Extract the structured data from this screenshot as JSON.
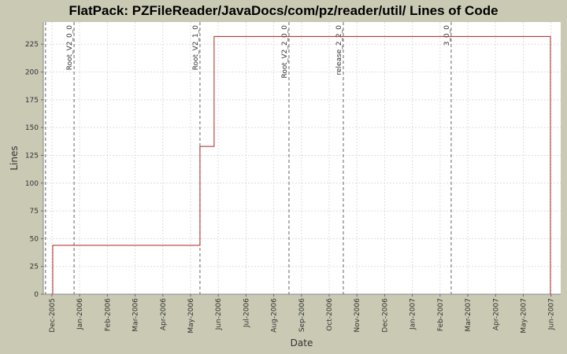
{
  "chart_data": {
    "type": "line",
    "title": "FlatPack: PZFileReader/JavaDocs/com/pz/reader/util/ Lines of Code",
    "x_label": "Date",
    "y_label": "Lines",
    "step": true,
    "color": "#b22222",
    "grid": true,
    "x": [
      0.03,
      0.03,
      5.34,
      5.85,
      17.98
    ],
    "series": [
      {
        "name": "Lines",
        "color": "#b22222",
        "values": [
          0,
          44,
          133,
          232,
          0
        ]
      }
    ],
    "xlim": [
      -0.31,
      18.35
    ],
    "xticks": [
      {
        "value": 0,
        "label": "Dec-2005"
      },
      {
        "value": 1,
        "label": "Jan-2006"
      },
      {
        "value": 2,
        "label": "Feb-2006"
      },
      {
        "value": 3,
        "label": "Mar-2006"
      },
      {
        "value": 4,
        "label": "Apr-2006"
      },
      {
        "value": 5,
        "label": "May-2006"
      },
      {
        "value": 6,
        "label": "Jun-2006"
      },
      {
        "value": 7,
        "label": "Jul-2006"
      },
      {
        "value": 8,
        "label": "Aug-2006"
      },
      {
        "value": 9,
        "label": "Sep-2006"
      },
      {
        "value": 10,
        "label": "Oct-2006"
      },
      {
        "value": 11,
        "label": "Nov-2006"
      },
      {
        "value": 12,
        "label": "Dec-2006"
      },
      {
        "value": 13,
        "label": "Jan-2007"
      },
      {
        "value": 14,
        "label": "Feb-2007"
      },
      {
        "value": 15,
        "label": "Mar-2007"
      },
      {
        "value": 16,
        "label": "Apr-2007"
      },
      {
        "value": 17,
        "label": "May-2007"
      },
      {
        "value": 18,
        "label": "Jun-2007"
      }
    ],
    "ylim": [
      0,
      245
    ],
    "yticks": [
      0,
      25,
      50,
      75,
      100,
      125,
      150,
      175,
      200,
      225
    ],
    "markers": [
      {
        "x": -0.23
      },
      {
        "x": 0.8,
        "label": "Root_V2_0_0"
      },
      {
        "x": 5.34,
        "label": "Root_V2_1_0"
      },
      {
        "x": 8.55,
        "label": "Root_V2_2_0_0"
      },
      {
        "x": 10.51,
        "label": "release_2_2_0"
      },
      {
        "x": 14.4,
        "label": "3_0_0"
      }
    ]
  }
}
